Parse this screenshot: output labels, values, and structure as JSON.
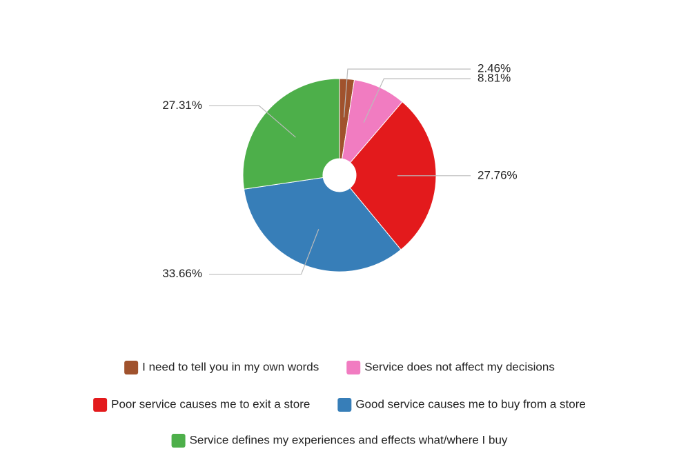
{
  "chart_data": {
    "type": "pie",
    "categories": [
      "I need to tell you in my own words",
      "Service does not affect my decisions",
      "Poor service causes me to exit a store",
      "Good service causes me to buy from a store",
      "Service defines my experiences and effects what/where I buy"
    ],
    "values": [
      2.46,
      8.81,
      27.76,
      33.66,
      27.31
    ],
    "value_labels": [
      "2.46%",
      "8.81%",
      "27.76%",
      "33.66%",
      "27.31%"
    ],
    "colors": [
      "#a0522d",
      "#f17cc1",
      "#e31a1c",
      "#377eb8",
      "#4daf4a"
    ],
    "donut": true
  }
}
